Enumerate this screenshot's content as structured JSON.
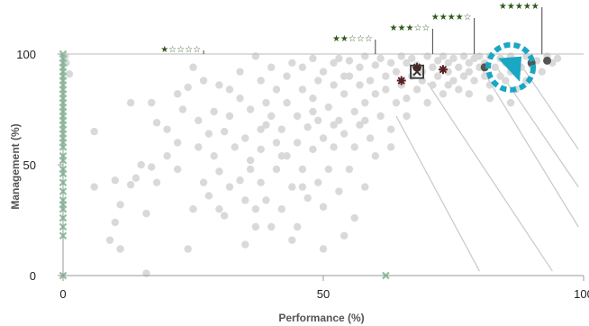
{
  "chart_data": {
    "type": "scatter",
    "xlabel": "Performance (%)",
    "ylabel": "Management (%)",
    "xlim": [
      0,
      100
    ],
    "ylim": [
      0,
      100
    ],
    "x_ticks": [
      {
        "value": 0,
        "label": "0"
      },
      {
        "value": 50,
        "label": "50"
      },
      {
        "value": 100,
        "label": "100"
      }
    ],
    "y_ticks": [
      {
        "value": 0,
        "label": "0"
      },
      {
        "value": 50,
        "label": "50"
      },
      {
        "value": 100,
        "label": "100"
      }
    ],
    "grid": false,
    "rating_markers": [
      {
        "x": 27,
        "label": "★☆☆☆☆"
      },
      {
        "x": 60,
        "label": "★★☆☆☆"
      },
      {
        "x": 71,
        "label": "★★★☆☆"
      },
      {
        "x": 79,
        "label": "★★★★☆"
      },
      {
        "x": 92,
        "label": "★★★★★"
      }
    ],
    "diagonal_guides": [
      {
        "from": [
          64,
          72
        ],
        "to": [
          80,
          2
        ]
      },
      {
        "from": [
          70,
          87
        ],
        "to": [
          94,
          2
        ]
      },
      {
        "from": [
          80,
          95
        ],
        "to": [
          99,
          22
        ]
      },
      {
        "from": [
          83,
          95
        ],
        "to": [
          99,
          40
        ]
      },
      {
        "from": [
          88,
          95
        ],
        "to": [
          99,
          57
        ]
      }
    ],
    "series": [
      {
        "name": "other",
        "marker": "circle",
        "color": "#d9d9d9",
        "points": [
          [
            0.4,
            99
          ],
          [
            0.6,
            96
          ],
          [
            1.2,
            91
          ],
          [
            6,
            65
          ],
          [
            6,
            40
          ],
          [
            9,
            16
          ],
          [
            10,
            43
          ],
          [
            10,
            24
          ],
          [
            11,
            32
          ],
          [
            11,
            12
          ],
          [
            13,
            78
          ],
          [
            13,
            41
          ],
          [
            14,
            44
          ],
          [
            15,
            50
          ],
          [
            16,
            28
          ],
          [
            17,
            49
          ],
          [
            17,
            78
          ],
          [
            18,
            69
          ],
          [
            18,
            42
          ],
          [
            20,
            66
          ],
          [
            20,
            54
          ],
          [
            22,
            82
          ],
          [
            22,
            60
          ],
          [
            22,
            48
          ],
          [
            23,
            75
          ],
          [
            24,
            85
          ],
          [
            25,
            94
          ],
          [
            25,
            30
          ],
          [
            26,
            70
          ],
          [
            26,
            58
          ],
          [
            27,
            88
          ],
          [
            27,
            42
          ],
          [
            28,
            64
          ],
          [
            29,
            54
          ],
          [
            29,
            74
          ],
          [
            30,
            86
          ],
          [
            30,
            47
          ],
          [
            31,
            65
          ],
          [
            31,
            27
          ],
          [
            32,
            84
          ],
          [
            32,
            72
          ],
          [
            33,
            58
          ],
          [
            34,
            92
          ],
          [
            34,
            43
          ],
          [
            35,
            62
          ],
          [
            35,
            34
          ],
          [
            35,
            14
          ],
          [
            36,
            75
          ],
          [
            36,
            52
          ],
          [
            37,
            30
          ],
          [
            37,
            22
          ],
          [
            37,
            99
          ],
          [
            38,
            88
          ],
          [
            38,
            57
          ],
          [
            38,
            42
          ],
          [
            39,
            68
          ],
          [
            39,
            78
          ],
          [
            39,
            34
          ],
          [
            40,
            94
          ],
          [
            40,
            22
          ],
          [
            41,
            60
          ],
          [
            41,
            48
          ],
          [
            41,
            84
          ],
          [
            42,
            66
          ],
          [
            42,
            30
          ],
          [
            43,
            78
          ],
          [
            43,
            90
          ],
          [
            43,
            54
          ],
          [
            44,
            40
          ],
          [
            44,
            96
          ],
          [
            44,
            16
          ],
          [
            45,
            72
          ],
          [
            45,
            60
          ],
          [
            46,
            84
          ],
          [
            46,
            48
          ],
          [
            46,
            94
          ],
          [
            47,
            67
          ],
          [
            47,
            35
          ],
          [
            48,
            80
          ],
          [
            48,
            57
          ],
          [
            48,
            98
          ],
          [
            49,
            88
          ],
          [
            49,
            42
          ],
          [
            49,
            70
          ],
          [
            50,
            92
          ],
          [
            50,
            62
          ],
          [
            50,
            31
          ],
          [
            51,
            76
          ],
          [
            51,
            48
          ],
          [
            52,
            86
          ],
          [
            52,
            96
          ],
          [
            52,
            58
          ],
          [
            53,
            70
          ],
          [
            53,
            38
          ],
          [
            53,
            98
          ],
          [
            54,
            82
          ],
          [
            54,
            64
          ],
          [
            54,
            18
          ],
          [
            55,
            90
          ],
          [
            55,
            48
          ],
          [
            55,
            97
          ],
          [
            56,
            74
          ],
          [
            56,
            58
          ],
          [
            56,
            26
          ],
          [
            57,
            86
          ],
          [
            57,
            94
          ],
          [
            57,
            68
          ],
          [
            58,
            78
          ],
          [
            58,
            99
          ],
          [
            58,
            40
          ],
          [
            59,
            88
          ],
          [
            59,
            62
          ],
          [
            60,
            95
          ],
          [
            60,
            82
          ],
          [
            60,
            54
          ],
          [
            61,
            98
          ],
          [
            61,
            72
          ],
          [
            62,
            90
          ],
          [
            62,
            84
          ],
          [
            63,
            96
          ],
          [
            63,
            66
          ],
          [
            64,
            92
          ],
          [
            64,
            78
          ],
          [
            65,
            99
          ],
          [
            65,
            86
          ],
          [
            66,
            96
          ],
          [
            66,
            72
          ],
          [
            67,
            90
          ],
          [
            67,
            98
          ],
          [
            68,
            84
          ],
          [
            68,
            95
          ],
          [
            69,
            88
          ],
          [
            70,
            99
          ],
          [
            70,
            78
          ],
          [
            71,
            94
          ],
          [
            71,
            86
          ],
          [
            72,
            97
          ],
          [
            72,
            90
          ],
          [
            73,
            82
          ],
          [
            73,
            99
          ],
          [
            74,
            92
          ],
          [
            74,
            96
          ],
          [
            75,
            88
          ],
          [
            75,
            98
          ],
          [
            76,
            94
          ],
          [
            76,
            84
          ],
          [
            77,
            99
          ],
          [
            77,
            90
          ],
          [
            78,
            96
          ],
          [
            78,
            92
          ],
          [
            79,
            98
          ],
          [
            79,
            88
          ],
          [
            80,
            94
          ],
          [
            80,
            99
          ],
          [
            81,
            90
          ],
          [
            81,
            96
          ],
          [
            82,
            99
          ],
          [
            82,
            86
          ],
          [
            83,
            94
          ],
          [
            84,
            98
          ],
          [
            84,
            90
          ],
          [
            85,
            96
          ],
          [
            85,
            88
          ],
          [
            86,
            99
          ],
          [
            86,
            92
          ],
          [
            87,
            84
          ],
          [
            87,
            97
          ],
          [
            88,
            94
          ],
          [
            89,
            99
          ],
          [
            89,
            88
          ],
          [
            90,
            95
          ],
          [
            91,
            97
          ],
          [
            92,
            92
          ],
          [
            93,
            99
          ],
          [
            94,
            96
          ],
          [
            95,
            98
          ],
          [
            16,
            1
          ],
          [
            42,
            54
          ],
          [
            45,
            22
          ],
          [
            50,
            12
          ],
          [
            36,
            48
          ],
          [
            28,
            36
          ],
          [
            24,
            12
          ],
          [
            30,
            30
          ],
          [
            32,
            40
          ],
          [
            46,
            40
          ],
          [
            40,
            72
          ],
          [
            52,
            68
          ],
          [
            58,
            70
          ],
          [
            63,
            58
          ],
          [
            66,
            80
          ],
          [
            69,
            92
          ],
          [
            74,
            86
          ],
          [
            78,
            82
          ],
          [
            82,
            80
          ],
          [
            86,
            78
          ],
          [
            54,
            90
          ],
          [
            48,
            74
          ],
          [
            38,
            66
          ],
          [
            34,
            80
          ]
        ]
      },
      {
        "name": "zero-performance",
        "marker": "cross",
        "color": "#8fbf9f",
        "points": [
          [
            0,
            100
          ],
          [
            0,
            98
          ],
          [
            0,
            96
          ],
          [
            0,
            94
          ],
          [
            0,
            92
          ],
          [
            0,
            90
          ],
          [
            0,
            88
          ],
          [
            0,
            86
          ],
          [
            0,
            84
          ],
          [
            0,
            82
          ],
          [
            0,
            80
          ],
          [
            0,
            78
          ],
          [
            0,
            76
          ],
          [
            0,
            74
          ],
          [
            0,
            72
          ],
          [
            0,
            70
          ],
          [
            0,
            68
          ],
          [
            0,
            66
          ],
          [
            0,
            64
          ],
          [
            0,
            62
          ],
          [
            0,
            60
          ],
          [
            0,
            58
          ],
          [
            0,
            54
          ],
          [
            0,
            52
          ],
          [
            0,
            48
          ],
          [
            0,
            46
          ],
          [
            0,
            42
          ],
          [
            0,
            38
          ],
          [
            0,
            34
          ],
          [
            0,
            32
          ],
          [
            0,
            30
          ],
          [
            0,
            26
          ],
          [
            0,
            22
          ],
          [
            0,
            18
          ],
          [
            0,
            0
          ],
          [
            62,
            0
          ]
        ]
      },
      {
        "name": "peers",
        "marker": "asterisk",
        "color": "#5a1f1f",
        "points": [
          [
            65,
            88
          ],
          [
            68,
            94
          ],
          [
            73,
            93
          ]
        ]
      },
      {
        "name": "highlighted",
        "marker": "boxed-cross",
        "color": "#333333",
        "points": [
          [
            68,
            92
          ]
        ]
      },
      {
        "name": "top",
        "marker": "circle",
        "color": "#555555",
        "points": [
          [
            81,
            94
          ],
          [
            86,
            96
          ],
          [
            90,
            96
          ],
          [
            93,
            97
          ]
        ]
      }
    ],
    "highlight": {
      "x": 86,
      "y": 94,
      "color": "#1aa7c4",
      "style": "dashed-ring-with-arrow"
    }
  }
}
